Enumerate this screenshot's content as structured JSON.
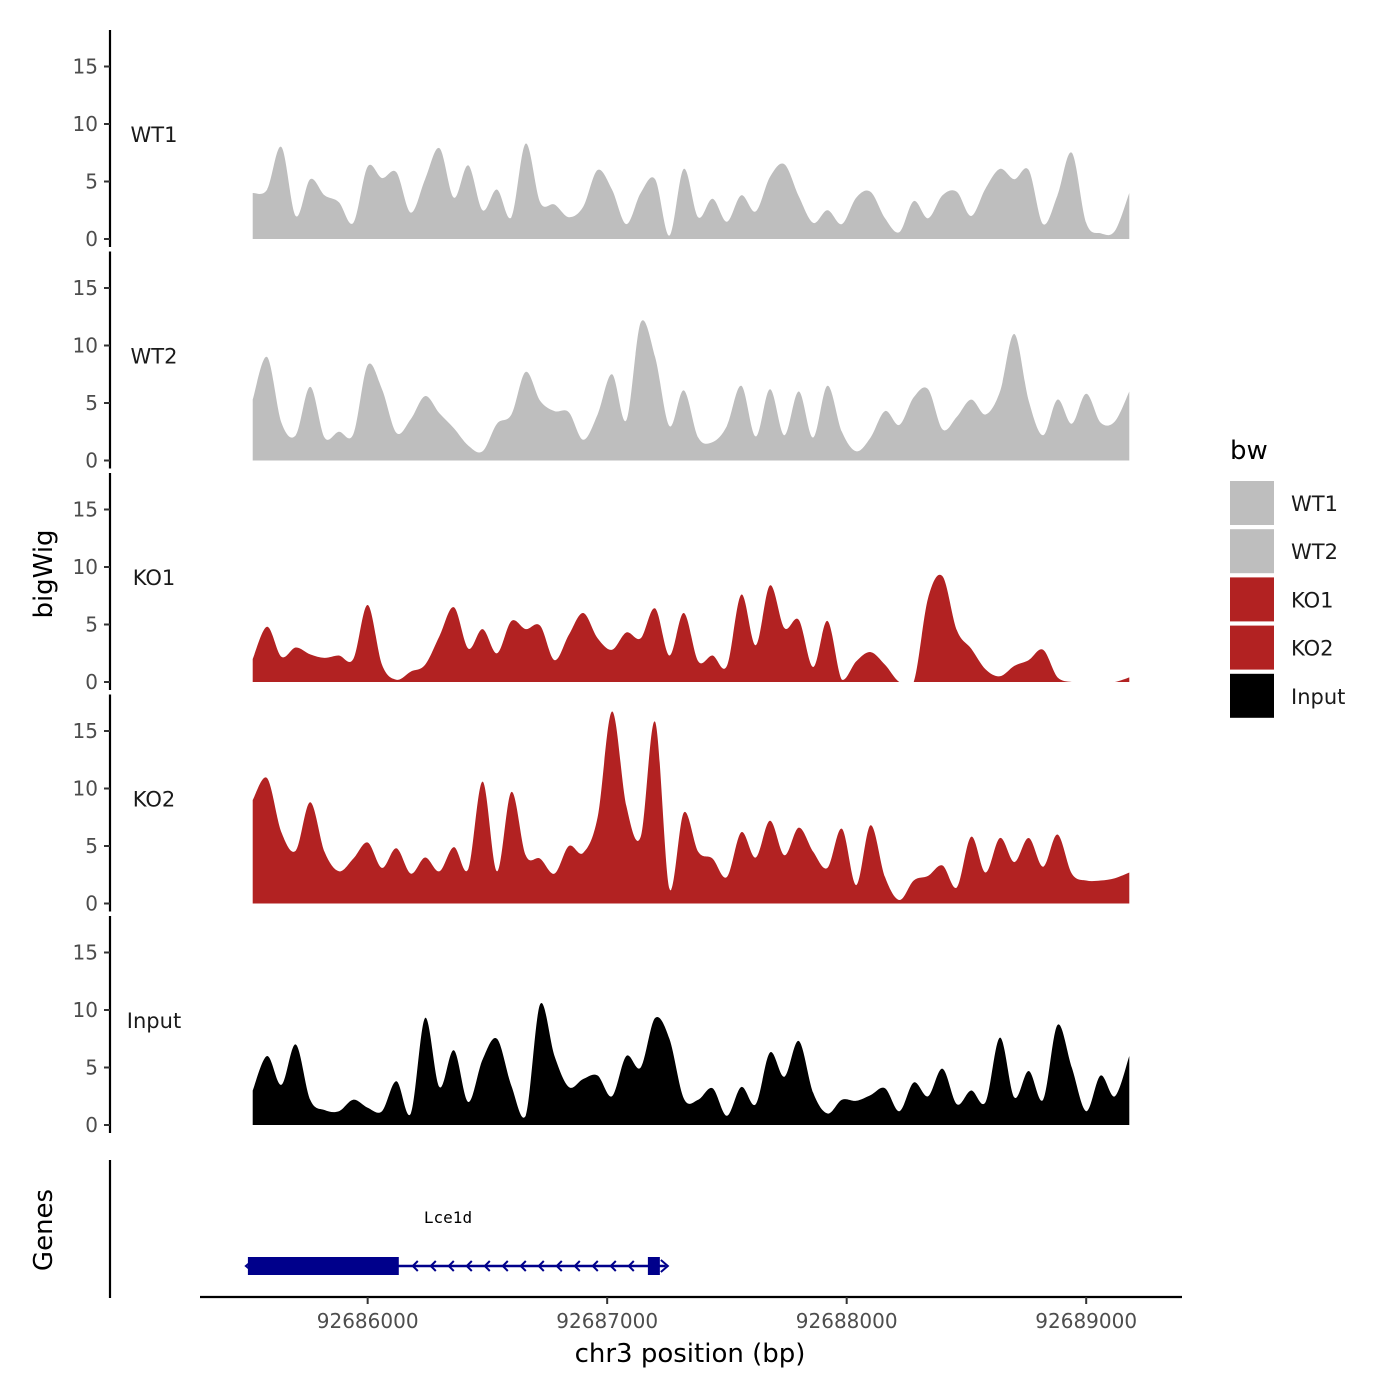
{
  "chart_data": {
    "type": "area",
    "title": "",
    "xlabel": "chr3 position (bp)",
    "ylabel": "bigWig",
    "genes_label": "Genes",
    "xlim": [
      92685300,
      92689400
    ],
    "x_ticks": [
      {
        "value": 92686000,
        "label": "92686000"
      },
      {
        "value": 92687000,
        "label": "92687000"
      },
      {
        "value": 92688000,
        "label": "92688000"
      },
      {
        "value": 92689000,
        "label": "92689000"
      }
    ],
    "ylim": [
      0,
      18
    ],
    "y_ticks": [
      {
        "value": 0,
        "label": "0"
      },
      {
        "value": 5,
        "label": "5"
      },
      {
        "value": 10,
        "label": "10"
      },
      {
        "value": 15,
        "label": "15"
      }
    ],
    "x": [
      92685520,
      92685580,
      92685640,
      92685700,
      92685760,
      92685820,
      92685880,
      92685940,
      92686000,
      92686060,
      92686120,
      92686180,
      92686240,
      92686300,
      92686360,
      92686420,
      92686480,
      92686540,
      92686600,
      92686660,
      92686720,
      92686780,
      92686840,
      92686900,
      92686960,
      92687020,
      92687080,
      92687140,
      92687200,
      92687260,
      92687320,
      92687380,
      92687440,
      92687500,
      92687560,
      92687620,
      92687680,
      92687740,
      92687800,
      92687860,
      92687920,
      92687980,
      92688040,
      92688100,
      92688160,
      92688220,
      92688280,
      92688340,
      92688400,
      92688460,
      92688520,
      92688580,
      92688640,
      92688700,
      92688760,
      92688820,
      92688880,
      92688940,
      92689000,
      92689060,
      92689120,
      92689180
    ],
    "series": [
      {
        "name": "WT1",
        "color": "#BEBEBE",
        "values": [
          4.0,
          4.3,
          8.0,
          2.0,
          5.2,
          3.8,
          3.2,
          1.4,
          6.3,
          5.3,
          5.8,
          2.3,
          5.2,
          7.9,
          3.6,
          6.4,
          2.5,
          4.3,
          1.9,
          8.3,
          3.2,
          3.0,
          1.9,
          2.8,
          6.0,
          4.3,
          1.3,
          4.0,
          5.2,
          0.3,
          6.1,
          1.9,
          3.5,
          1.5,
          3.8,
          2.4,
          5.4,
          6.5,
          3.7,
          1.4,
          2.5,
          1.3,
          3.6,
          4.1,
          1.8,
          0.6,
          3.3,
          1.8,
          3.8,
          4.1,
          2.0,
          4.4,
          6.1,
          5.2,
          6.0,
          1.3,
          3.8,
          7.5,
          1.4,
          0.5,
          0.7,
          4.0
        ]
      },
      {
        "name": "WT2",
        "color": "#BEBEBE",
        "values": [
          5.3,
          9.0,
          3.3,
          2.2,
          6.4,
          2.0,
          2.5,
          2.3,
          8.3,
          6.2,
          2.4,
          3.6,
          5.6,
          4.1,
          2.8,
          1.3,
          0.8,
          3.2,
          4.0,
          7.7,
          5.2,
          4.3,
          4.2,
          1.8,
          4.0,
          7.5,
          3.5,
          12.0,
          9.0,
          3.0,
          6.1,
          2.0,
          1.6,
          3.0,
          6.5,
          2.1,
          6.2,
          2.2,
          6.0,
          2.0,
          6.5,
          2.5,
          0.8,
          2.0,
          4.3,
          3.1,
          5.5,
          6.2,
          2.7,
          3.8,
          5.3,
          4.0,
          6.0,
          11.0,
          5.2,
          2.2,
          5.3,
          3.2,
          5.8,
          3.3,
          3.4,
          6.0
        ]
      },
      {
        "name": "KO1",
        "color": "#B22222",
        "values": [
          2.0,
          4.8,
          2.2,
          3.0,
          2.4,
          2.1,
          2.3,
          2.0,
          6.7,
          1.5,
          0.2,
          0.9,
          1.5,
          4.0,
          6.5,
          2.9,
          4.6,
          2.5,
          5.3,
          4.6,
          4.9,
          1.9,
          4.1,
          6.0,
          3.8,
          2.8,
          4.3,
          3.8,
          6.4,
          2.3,
          6.0,
          1.8,
          2.3,
          1.4,
          7.6,
          3.2,
          8.4,
          4.7,
          5.4,
          1.3,
          5.3,
          0.2,
          1.8,
          2.6,
          1.5,
          0.0,
          0.0,
          7.3,
          9.2,
          4.5,
          2.9,
          1.1,
          0.5,
          1.4,
          1.9,
          2.8,
          0.4,
          0.0,
          0.0,
          0.0,
          0.0,
          0.4
        ]
      },
      {
        "name": "KO2",
        "color": "#B22222",
        "values": [
          9.0,
          10.9,
          6.2,
          4.6,
          8.8,
          4.5,
          2.8,
          3.9,
          5.3,
          3.1,
          4.8,
          2.6,
          4.0,
          2.8,
          4.9,
          3.0,
          10.6,
          2.8,
          9.7,
          4.2,
          3.9,
          2.6,
          5.0,
          4.4,
          7.5,
          16.7,
          8.5,
          5.8,
          15.8,
          1.3,
          7.9,
          4.5,
          3.9,
          2.3,
          6.2,
          4.0,
          7.2,
          4.2,
          6.6,
          4.5,
          3.1,
          6.5,
          1.6,
          6.8,
          2.3,
          0.3,
          2.0,
          2.4,
          3.3,
          1.4,
          5.8,
          2.7,
          5.7,
          3.6,
          5.7,
          3.2,
          6.0,
          2.6,
          2.0,
          2.0,
          2.2,
          2.7
        ]
      },
      {
        "name": "Input",
        "color": "#000000",
        "values": [
          3.0,
          6.0,
          3.5,
          7.0,
          2.2,
          1.3,
          1.2,
          2.2,
          1.5,
          1.2,
          3.8,
          1.0,
          9.3,
          3.3,
          6.5,
          2.0,
          5.7,
          7.5,
          3.4,
          0.8,
          10.5,
          6.0,
          3.3,
          4.0,
          4.3,
          2.5,
          6.0,
          5.0,
          9.3,
          7.5,
          2.3,
          2.2,
          3.2,
          0.8,
          3.3,
          1.8,
          6.3,
          4.2,
          7.3,
          2.8,
          1.0,
          2.2,
          2.1,
          2.6,
          3.2,
          1.2,
          3.7,
          2.5,
          4.9,
          1.8,
          3.0,
          2.0,
          7.6,
          2.4,
          4.7,
          2.2,
          8.7,
          5.0,
          1.2,
          4.3,
          2.5,
          6.0
        ]
      }
    ],
    "legend": {
      "title": "bw",
      "position": "right",
      "entries": [
        {
          "label": "WT1",
          "color": "#BEBEBE"
        },
        {
          "label": "WT2",
          "color": "#BEBEBE"
        },
        {
          "label": "KO1",
          "color": "#B22222"
        },
        {
          "label": "KO2",
          "color": "#B22222"
        },
        {
          "label": "Input",
          "color": "#000000"
        }
      ]
    },
    "gene": {
      "name": "Lce1d",
      "color": "#00008B",
      "start": 92685500,
      "end": 92687220,
      "strand": "-",
      "exons": [
        [
          92685500,
          92686130
        ],
        [
          92687170,
          92687220
        ]
      ]
    }
  }
}
